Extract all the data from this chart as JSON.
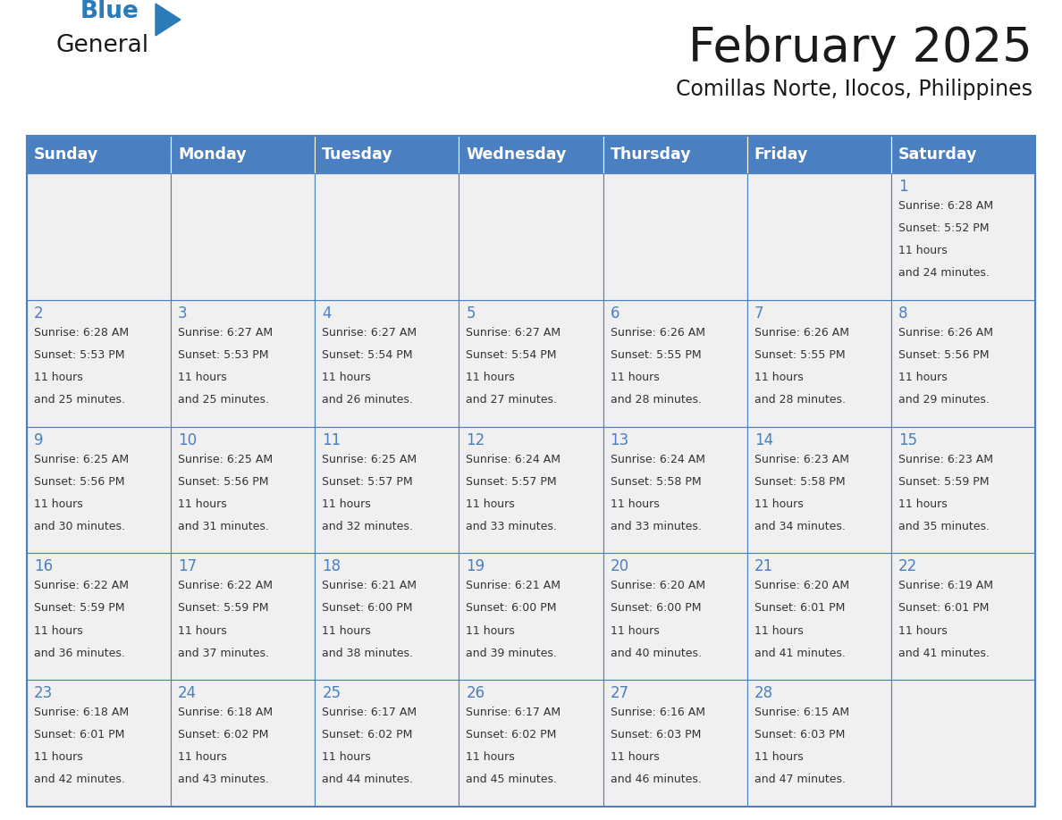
{
  "title": "February 2025",
  "subtitle": "Comillas Norte, Ilocos, Philippines",
  "header_bg": "#4A7FC1",
  "header_text_color": "#FFFFFF",
  "cell_bg": "#F0F0F0",
  "day_number_color": "#4A7FC1",
  "info_text_color": "#333333",
  "border_color": "#4A7FC1",
  "days_of_week": [
    "Sunday",
    "Monday",
    "Tuesday",
    "Wednesday",
    "Thursday",
    "Friday",
    "Saturday"
  ],
  "weeks": [
    [
      {
        "day": null,
        "sunrise": null,
        "sunset": null,
        "daylight": null
      },
      {
        "day": null,
        "sunrise": null,
        "sunset": null,
        "daylight": null
      },
      {
        "day": null,
        "sunrise": null,
        "sunset": null,
        "daylight": null
      },
      {
        "day": null,
        "sunrise": null,
        "sunset": null,
        "daylight": null
      },
      {
        "day": null,
        "sunrise": null,
        "sunset": null,
        "daylight": null
      },
      {
        "day": null,
        "sunrise": null,
        "sunset": null,
        "daylight": null
      },
      {
        "day": 1,
        "sunrise": "6:28 AM",
        "sunset": "5:52 PM",
        "daylight": "11 hours and 24 minutes."
      }
    ],
    [
      {
        "day": 2,
        "sunrise": "6:28 AM",
        "sunset": "5:53 PM",
        "daylight": "11 hours and 25 minutes."
      },
      {
        "day": 3,
        "sunrise": "6:27 AM",
        "sunset": "5:53 PM",
        "daylight": "11 hours and 25 minutes."
      },
      {
        "day": 4,
        "sunrise": "6:27 AM",
        "sunset": "5:54 PM",
        "daylight": "11 hours and 26 minutes."
      },
      {
        "day": 5,
        "sunrise": "6:27 AM",
        "sunset": "5:54 PM",
        "daylight": "11 hours and 27 minutes."
      },
      {
        "day": 6,
        "sunrise": "6:26 AM",
        "sunset": "5:55 PM",
        "daylight": "11 hours and 28 minutes."
      },
      {
        "day": 7,
        "sunrise": "6:26 AM",
        "sunset": "5:55 PM",
        "daylight": "11 hours and 28 minutes."
      },
      {
        "day": 8,
        "sunrise": "6:26 AM",
        "sunset": "5:56 PM",
        "daylight": "11 hours and 29 minutes."
      }
    ],
    [
      {
        "day": 9,
        "sunrise": "6:25 AM",
        "sunset": "5:56 PM",
        "daylight": "11 hours and 30 minutes."
      },
      {
        "day": 10,
        "sunrise": "6:25 AM",
        "sunset": "5:56 PM",
        "daylight": "11 hours and 31 minutes."
      },
      {
        "day": 11,
        "sunrise": "6:25 AM",
        "sunset": "5:57 PM",
        "daylight": "11 hours and 32 minutes."
      },
      {
        "day": 12,
        "sunrise": "6:24 AM",
        "sunset": "5:57 PM",
        "daylight": "11 hours and 33 minutes."
      },
      {
        "day": 13,
        "sunrise": "6:24 AM",
        "sunset": "5:58 PM",
        "daylight": "11 hours and 33 minutes."
      },
      {
        "day": 14,
        "sunrise": "6:23 AM",
        "sunset": "5:58 PM",
        "daylight": "11 hours and 34 minutes."
      },
      {
        "day": 15,
        "sunrise": "6:23 AM",
        "sunset": "5:59 PM",
        "daylight": "11 hours and 35 minutes."
      }
    ],
    [
      {
        "day": 16,
        "sunrise": "6:22 AM",
        "sunset": "5:59 PM",
        "daylight": "11 hours and 36 minutes."
      },
      {
        "day": 17,
        "sunrise": "6:22 AM",
        "sunset": "5:59 PM",
        "daylight": "11 hours and 37 minutes."
      },
      {
        "day": 18,
        "sunrise": "6:21 AM",
        "sunset": "6:00 PM",
        "daylight": "11 hours and 38 minutes."
      },
      {
        "day": 19,
        "sunrise": "6:21 AM",
        "sunset": "6:00 PM",
        "daylight": "11 hours and 39 minutes."
      },
      {
        "day": 20,
        "sunrise": "6:20 AM",
        "sunset": "6:00 PM",
        "daylight": "11 hours and 40 minutes."
      },
      {
        "day": 21,
        "sunrise": "6:20 AM",
        "sunset": "6:01 PM",
        "daylight": "11 hours and 41 minutes."
      },
      {
        "day": 22,
        "sunrise": "6:19 AM",
        "sunset": "6:01 PM",
        "daylight": "11 hours and 41 minutes."
      }
    ],
    [
      {
        "day": 23,
        "sunrise": "6:18 AM",
        "sunset": "6:01 PM",
        "daylight": "11 hours and 42 minutes."
      },
      {
        "day": 24,
        "sunrise": "6:18 AM",
        "sunset": "6:02 PM",
        "daylight": "11 hours and 43 minutes."
      },
      {
        "day": 25,
        "sunrise": "6:17 AM",
        "sunset": "6:02 PM",
        "daylight": "11 hours and 44 minutes."
      },
      {
        "day": 26,
        "sunrise": "6:17 AM",
        "sunset": "6:02 PM",
        "daylight": "11 hours and 45 minutes."
      },
      {
        "day": 27,
        "sunrise": "6:16 AM",
        "sunset": "6:03 PM",
        "daylight": "11 hours and 46 minutes."
      },
      {
        "day": 28,
        "sunrise": "6:15 AM",
        "sunset": "6:03 PM",
        "daylight": "11 hours and 47 minutes."
      },
      {
        "day": null,
        "sunrise": null,
        "sunset": null,
        "daylight": null
      }
    ]
  ]
}
